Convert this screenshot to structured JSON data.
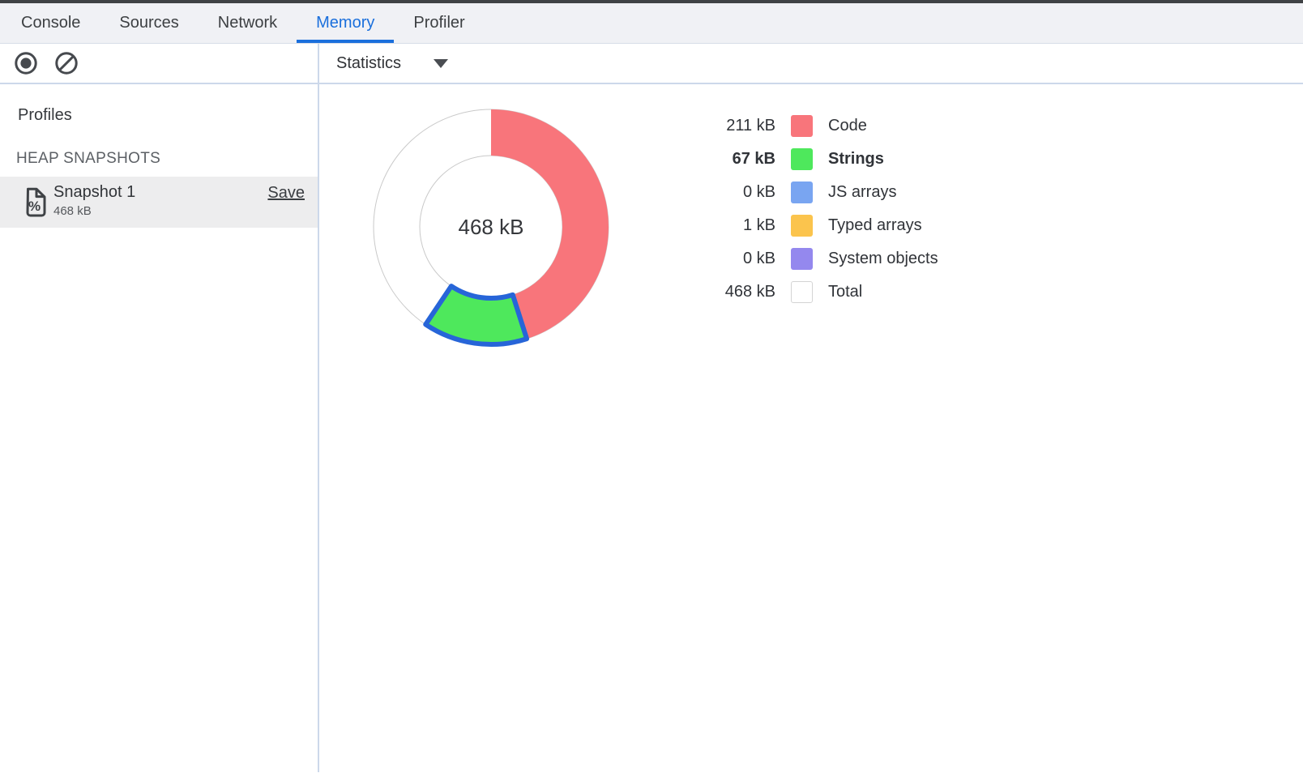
{
  "window": {
    "edge_color": "#3f4245"
  },
  "tabs": {
    "items": [
      {
        "label": "Console",
        "active": false
      },
      {
        "label": "Sources",
        "active": false
      },
      {
        "label": "Network",
        "active": false
      },
      {
        "label": "Memory",
        "active": true
      },
      {
        "label": "Profiler",
        "active": false
      }
    ],
    "active_color": "#1a6fdc"
  },
  "toolbar": {
    "record_icon": "record",
    "clear_icon": "clear-all-profiles",
    "view_selector": "Statistics"
  },
  "sidebar": {
    "profiles_title": "Profiles",
    "section_title": "HEAP SNAPSHOTS",
    "snapshot": {
      "name": "Snapshot 1",
      "size": "468 kB",
      "save_label": "Save"
    }
  },
  "chart_data": {
    "type": "pie",
    "variant": "donut",
    "center_label": "468 kB",
    "unit": "kB",
    "outer_radius": 145,
    "inner_radius": 88,
    "start_angle_deg": 0,
    "direction": "clockwise",
    "ring_outline_color": "#c9c9c9",
    "selection_stroke_color": "#2765d8",
    "series": [
      {
        "label": "Code",
        "value": 211,
        "value_text": "211 kB",
        "color": "#f8757b",
        "selected": false
      },
      {
        "label": "Strings",
        "value": 67,
        "value_text": "67 kB",
        "color": "#4ee85c",
        "selected": true
      },
      {
        "label": "JS arrays",
        "value": 0,
        "value_text": "0 kB",
        "color": "#79a5f1",
        "selected": false
      },
      {
        "label": "Typed arrays",
        "value": 1,
        "value_text": "1 kB",
        "color": "#fbc44d",
        "selected": false
      },
      {
        "label": "System objects",
        "value": 0,
        "value_text": "0 kB",
        "color": "#9488ee",
        "selected": false
      }
    ],
    "total": {
      "label": "Total",
      "value": 468,
      "value_text": "468 kB",
      "color": "#ffffff",
      "swatch_border": "#d4d4d4"
    },
    "legend_position": "right"
  }
}
